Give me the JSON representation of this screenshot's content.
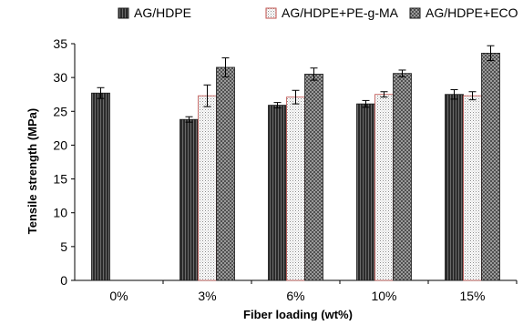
{
  "chart_data": {
    "type": "bar",
    "title": "",
    "xlabel": "Fiber loading (wt%)",
    "ylabel": "Tensile strength (MPa)",
    "categories": [
      "0%",
      "3%",
      "6%",
      "10%",
      "15%"
    ],
    "ylim": [
      0,
      35
    ],
    "yticks": [
      0,
      5,
      10,
      15,
      20,
      25,
      30,
      35
    ],
    "grid": false,
    "legend": "top",
    "series": [
      {
        "name": "AG/HDPE",
        "color": "#3a3a3a",
        "pattern": "dark-vertical",
        "values": [
          27.7,
          23.8,
          25.9,
          26.1,
          27.5
        ],
        "errors": [
          0.8,
          0.4,
          0.4,
          0.5,
          0.7
        ]
      },
      {
        "name": "AG/HDPE+PE-g-MA",
        "color": "#c0504d",
        "pattern": "light-dotted",
        "values": [
          null,
          27.3,
          27.1,
          27.5,
          27.3
        ],
        "errors": [
          null,
          1.6,
          1.0,
          0.4,
          0.6
        ]
      },
      {
        "name": "AG/HDPE+ECO",
        "color": "#555555",
        "pattern": "grey-checker",
        "values": [
          null,
          31.5,
          30.5,
          30.6,
          33.6
        ],
        "errors": [
          null,
          1.4,
          0.9,
          0.5,
          1.1
        ]
      }
    ]
  }
}
